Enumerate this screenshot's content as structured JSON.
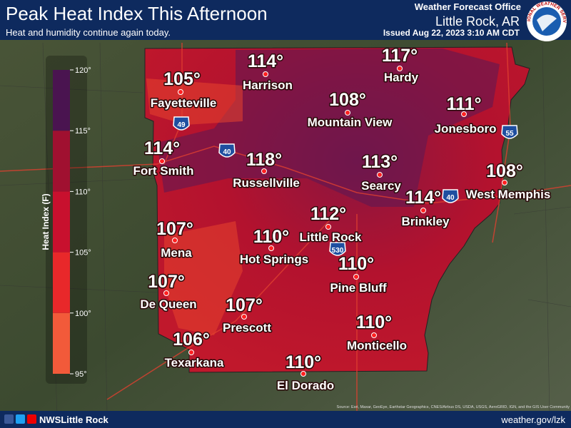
{
  "header": {
    "title": "Peak Heat Index This Afternoon",
    "subtitle": "Heat and humidity continue again today.",
    "office": "Weather Forecast Office",
    "location": "Little Rock, AR",
    "issued": "Issued Aug 22, 2023 3:10 AM CDT",
    "logo_text": "NATIONAL WEATHER SERVICE"
  },
  "legend": {
    "label": "Heat Index (F)",
    "ticks": [
      {
        "value": 95,
        "label": "95°"
      },
      {
        "value": 100,
        "label": "100°"
      },
      {
        "value": 105,
        "label": "105°"
      },
      {
        "value": 110,
        "label": "110°"
      },
      {
        "value": 115,
        "label": "115°"
      },
      {
        "value": 120,
        "label": "120°"
      }
    ]
  },
  "cities": [
    {
      "name": "Fayetteville",
      "value": "105°"
    },
    {
      "name": "Harrison",
      "value": "114°"
    },
    {
      "name": "Hardy",
      "value": "117°"
    },
    {
      "name": "Mountain View",
      "value": "108°"
    },
    {
      "name": "Jonesboro",
      "value": "111°"
    },
    {
      "name": "Fort Smith",
      "value": "114°"
    },
    {
      "name": "Russellville",
      "value": "118°"
    },
    {
      "name": "Searcy",
      "value": "113°"
    },
    {
      "name": "West Memphis",
      "value": "108°"
    },
    {
      "name": "Brinkley",
      "value": "114°"
    },
    {
      "name": "Little Rock",
      "value": "112°"
    },
    {
      "name": "Mena",
      "value": "107°"
    },
    {
      "name": "Hot Springs",
      "value": "110°"
    },
    {
      "name": "Pine Bluff",
      "value": "110°"
    },
    {
      "name": "De Queen",
      "value": "107°"
    },
    {
      "name": "Prescott",
      "value": "107°"
    },
    {
      "name": "Monticello",
      "value": "110°"
    },
    {
      "name": "Texarkana",
      "value": "106°"
    },
    {
      "name": "El Dorado",
      "value": "110°"
    }
  ],
  "interstates": [
    "49",
    "40",
    "40",
    "55",
    "530"
  ],
  "footer": {
    "handle": "NWSLittle Rock",
    "website": "weather.gov/lzk",
    "attribution": "Source: Esri, Maxar, GeoEye, Earthstar Geographics, CNES/Airbus DS, USDA, USGS, AeroGRID, IGN, and the GIS User Community"
  }
}
